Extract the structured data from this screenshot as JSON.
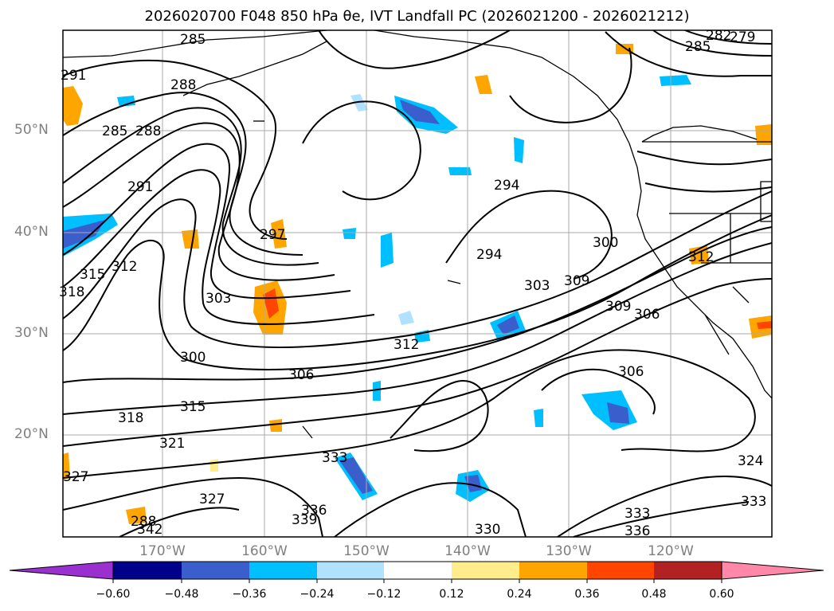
{
  "title": "2026020700 F048 850 hPa θe, IVT Landfall PC (2026021200 - 2026021212)",
  "map": {
    "lat_labels": [
      "50°N",
      "40°N",
      "30°N",
      "20°N"
    ],
    "lon_labels": [
      "170°W",
      "160°W",
      "150°W",
      "140°W",
      "130°W",
      "120°W"
    ],
    "contour_labels": [
      "285",
      "288",
      "285",
      "288",
      "291",
      "291",
      "294",
      "294",
      "297",
      "300",
      "303",
      "306",
      "309",
      "309",
      "306",
      "312",
      "312",
      "315",
      "318",
      "321",
      "324",
      "327",
      "327",
      "330",
      "333",
      "333",
      "333",
      "336",
      "336",
      "339",
      "342",
      "300",
      "303",
      "306",
      "312",
      "315",
      "318",
      "279",
      "282",
      "285",
      "288"
    ],
    "theta_e_contour_values_K": [
      279,
      282,
      285,
      288,
      291,
      294,
      297,
      300,
      303,
      306,
      309,
      312,
      315,
      318,
      321,
      324,
      327,
      330,
      333,
      336,
      339,
      342
    ]
  },
  "colorbar": {
    "labels": [
      "−0.60",
      "−0.48",
      "−0.36",
      "−0.24",
      "−0.12",
      "0.12",
      "0.24",
      "0.36",
      "0.48",
      "0.60"
    ],
    "colors": [
      "#9b30d0",
      "#00008b",
      "#3a5fcd",
      "#00bfff",
      "#b0e2ff",
      "#ffffff",
      "#ffec8b",
      "#ffa500",
      "#ff4500",
      "#b22222",
      "#ff88aa"
    ]
  }
}
